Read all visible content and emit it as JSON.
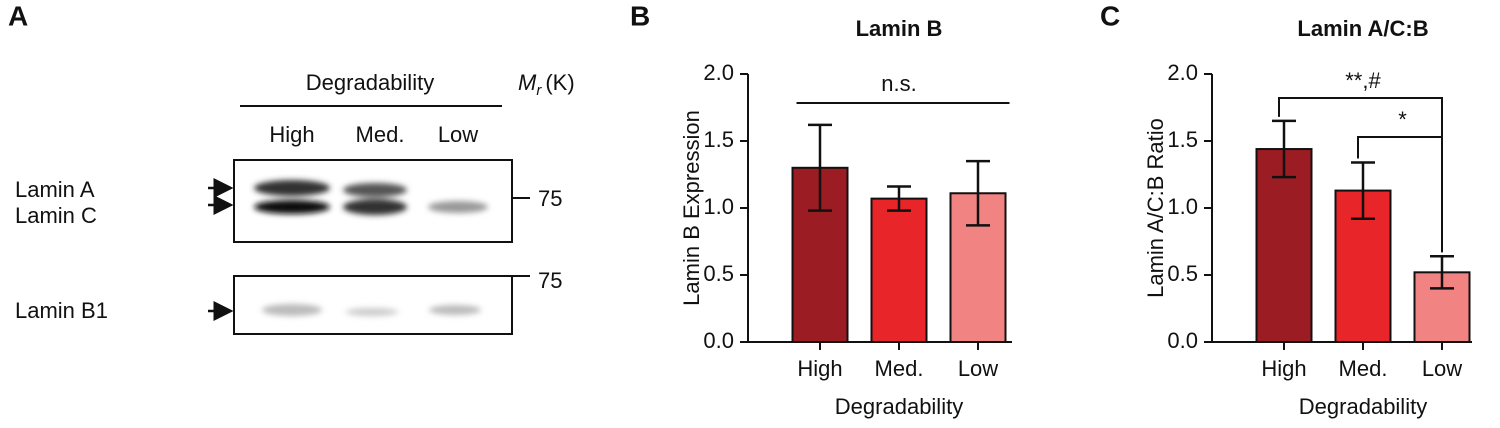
{
  "blot": {
    "panel_label": "A",
    "header": "Degradability",
    "mass_label": {
      "symbol": "M",
      "subscript": "r",
      "unit": "(K)"
    },
    "lanes": [
      "High",
      "Med.",
      "Low"
    ],
    "rows": [
      {
        "labels": [
          "Lamin A",
          "Lamin C"
        ],
        "marker": "75"
      },
      {
        "labels": [
          "Lamin B1"
        ],
        "marker": "75"
      }
    ]
  },
  "chart_data": [
    {
      "type": "bar",
      "panel_label": "B",
      "title": "Lamin B",
      "y_label": "Lamin B Expression",
      "x_label": "Degradability",
      "categories": [
        "High",
        "Med.",
        "Low"
      ],
      "values": [
        1.3,
        1.07,
        1.11
      ],
      "errors": [
        0.32,
        0.09,
        0.24
      ],
      "colors": [
        "#9b1c22",
        "#e8262a",
        "#f28383"
      ],
      "ylim": [
        0,
        2
      ],
      "yticks": [
        {
          "value": 0,
          "label": "0.0"
        },
        {
          "value": 0.5,
          "label": "0.5"
        },
        {
          "value": 1,
          "label": "1.0"
        },
        {
          "value": 1.5,
          "label": "1.5"
        },
        {
          "value": 2,
          "label": "2.0"
        }
      ],
      "comparisons": [
        {
          "label": "n.s.",
          "between": [
            "High",
            "Low"
          ],
          "style": "line"
        }
      ]
    },
    {
      "type": "bar",
      "panel_label": "C",
      "title": "Lamin A/C:B",
      "y_label": "Lamin A/C:B Ratio",
      "x_label": "Degradability",
      "categories": [
        "High",
        "Med.",
        "Low"
      ],
      "values": [
        1.44,
        1.13,
        0.52
      ],
      "errors": [
        0.21,
        0.21,
        0.12
      ],
      "colors": [
        "#9b1c22",
        "#e8262a",
        "#f28383"
      ],
      "ylim": [
        0,
        2
      ],
      "yticks": [
        {
          "value": 0,
          "label": "0.0"
        },
        {
          "value": 0.5,
          "label": "0.5"
        },
        {
          "value": 1,
          "label": "1.0"
        },
        {
          "value": 1.5,
          "label": "1.5"
        },
        {
          "value": 2,
          "label": "2.0"
        }
      ],
      "comparisons": [
        {
          "label": "**,#",
          "between": [
            "High",
            "Low"
          ],
          "style": "bracket"
        },
        {
          "label": "*",
          "between": [
            "Med.",
            "Low"
          ],
          "style": "bracket"
        }
      ]
    }
  ]
}
